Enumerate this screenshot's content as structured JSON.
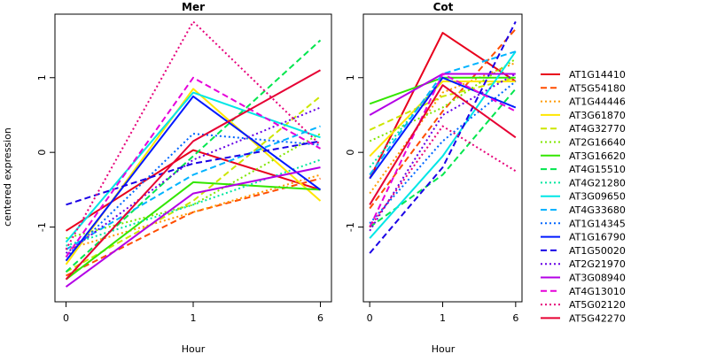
{
  "chart_data": {
    "type": "line",
    "ylabel": "centered expression",
    "xlabel": "Hour",
    "x": [
      "0",
      "1",
      "6"
    ],
    "ylim": [
      -2.0,
      1.85
    ],
    "yticks": [
      -1,
      0,
      1
    ],
    "panels": [
      {
        "title": "Mer",
        "series": [
          {
            "name": "AT1G14410",
            "values": [
              -1.05,
              0.03,
              -0.5
            ]
          },
          {
            "name": "AT5G54180",
            "values": [
              -1.65,
              -0.8,
              -0.35
            ]
          },
          {
            "name": "AT1G44446",
            "values": [
              -1.3,
              -0.8,
              -0.3
            ]
          },
          {
            "name": "AT3G61870",
            "values": [
              -1.5,
              0.85,
              -0.65
            ]
          },
          {
            "name": "AT4G32770",
            "values": [
              -1.6,
              -0.65,
              0.75
            ]
          },
          {
            "name": "AT2G16640",
            "values": [
              -1.15,
              -0.7,
              0.25
            ]
          },
          {
            "name": "AT3G16620",
            "values": [
              -1.7,
              -0.4,
              -0.5
            ]
          },
          {
            "name": "AT4G15510",
            "values": [
              -1.6,
              -0.05,
              1.5
            ]
          },
          {
            "name": "AT4G21280",
            "values": [
              -1.25,
              -0.7,
              -0.1
            ]
          },
          {
            "name": "AT3G09650",
            "values": [
              -1.2,
              0.8,
              0.2
            ]
          },
          {
            "name": "AT4G33680",
            "values": [
              -1.3,
              -0.3,
              0.35
            ]
          },
          {
            "name": "AT1G14345",
            "values": [
              -1.4,
              0.25,
              0.1
            ]
          },
          {
            "name": "AT1G16790",
            "values": [
              -1.45,
              0.75,
              -0.5
            ]
          },
          {
            "name": "AT1G50020",
            "values": [
              -0.7,
              -0.15,
              0.15
            ]
          },
          {
            "name": "AT2G21970",
            "values": [
              -1.35,
              -0.1,
              0.6
            ]
          },
          {
            "name": "AT3G08940",
            "values": [
              -1.8,
              -0.55,
              -0.2
            ]
          },
          {
            "name": "AT4G13010",
            "values": [
              -1.4,
              1.0,
              0.05
            ]
          },
          {
            "name": "AT5G02120",
            "values": [
              -1.3,
              1.75,
              0.1
            ]
          },
          {
            "name": "AT5G42270",
            "values": [
              -1.7,
              0.15,
              1.1
            ]
          }
        ]
      },
      {
        "title": "Cot",
        "series": [
          {
            "name": "AT1G14410",
            "values": [
              -0.35,
              1.6,
              0.95
            ]
          },
          {
            "name": "AT5G54180",
            "values": [
              -0.75,
              0.55,
              1.65
            ]
          },
          {
            "name": "AT1G44446",
            "values": [
              -0.55,
              0.8,
              1.2
            ]
          },
          {
            "name": "AT3G61870",
            "values": [
              -0.05,
              0.95,
              0.95
            ]
          },
          {
            "name": "AT4G32770",
            "values": [
              0.3,
              0.75,
              1.0
            ]
          },
          {
            "name": "AT2G16640",
            "values": [
              0.15,
              0.6,
              1.25
            ]
          },
          {
            "name": "AT3G16620",
            "values": [
              0.65,
              1.0,
              1.0
            ]
          },
          {
            "name": "AT4G15510",
            "values": [
              -1.0,
              -0.3,
              0.85
            ]
          },
          {
            "name": "AT4G21280",
            "values": [
              -0.2,
              1.0,
              0.6
            ]
          },
          {
            "name": "AT3G09650",
            "values": [
              -1.15,
              -0.05,
              1.35
            ]
          },
          {
            "name": "AT4G33680",
            "values": [
              -0.3,
              1.05,
              1.35
            ]
          },
          {
            "name": "AT1G14345",
            "values": [
              -0.95,
              0.15,
              0.95
            ]
          },
          {
            "name": "AT1G16790",
            "values": [
              -0.35,
              1.0,
              0.6
            ]
          },
          {
            "name": "AT1G50020",
            "values": [
              -1.35,
              -0.2,
              1.75
            ]
          },
          {
            "name": "AT2G21970",
            "values": [
              -1.05,
              0.5,
              1.05
            ]
          },
          {
            "name": "AT3G08940",
            "values": [
              0.5,
              1.05,
              1.05
            ]
          },
          {
            "name": "AT4G13010",
            "values": [
              -1.0,
              1.05,
              0.55
            ]
          },
          {
            "name": "AT5G02120",
            "values": [
              -1.0,
              0.35,
              -0.25
            ]
          },
          {
            "name": "AT5G42270",
            "values": [
              -0.7,
              0.9,
              0.2
            ]
          }
        ]
      }
    ],
    "legend": {
      "placement": "right",
      "items": [
        {
          "name": "AT1G14410",
          "color": "#e8001c",
          "dash": "solid"
        },
        {
          "name": "AT5G54180",
          "color": "#ff4d00",
          "dash": "dashed"
        },
        {
          "name": "AT1G44446",
          "color": "#ff9a00",
          "dash": "dotted"
        },
        {
          "name": "AT3G61870",
          "color": "#ffe600",
          "dash": "solid"
        },
        {
          "name": "AT4G32770",
          "color": "#cce600",
          "dash": "dashed"
        },
        {
          "name": "AT2G16640",
          "color": "#80e600",
          "dash": "dotted"
        },
        {
          "name": "AT3G16620",
          "color": "#33e600",
          "dash": "solid"
        },
        {
          "name": "AT4G15510",
          "color": "#00e64d",
          "dash": "dashed"
        },
        {
          "name": "AT4G21280",
          "color": "#00e6a0",
          "dash": "dotted"
        },
        {
          "name": "AT3G09650",
          "color": "#00e6e6",
          "dash": "solid"
        },
        {
          "name": "AT4G33680",
          "color": "#00b3ff",
          "dash": "dashed"
        },
        {
          "name": "AT1G14345",
          "color": "#0066ff",
          "dash": "dotted"
        },
        {
          "name": "AT1G16790",
          "color": "#0019ff",
          "dash": "solid"
        },
        {
          "name": "AT1G50020",
          "color": "#1a00e6",
          "dash": "dashed"
        },
        {
          "name": "AT2G21970",
          "color": "#6600e6",
          "dash": "dotted"
        },
        {
          "name": "AT3G08940",
          "color": "#b300e6",
          "dash": "solid"
        },
        {
          "name": "AT4G13010",
          "color": "#e600d9",
          "dash": "dashed"
        },
        {
          "name": "AT5G02120",
          "color": "#e6007a",
          "dash": "dotted"
        },
        {
          "name": "AT5G42270",
          "color": "#e60033",
          "dash": "solid"
        }
      ]
    }
  }
}
